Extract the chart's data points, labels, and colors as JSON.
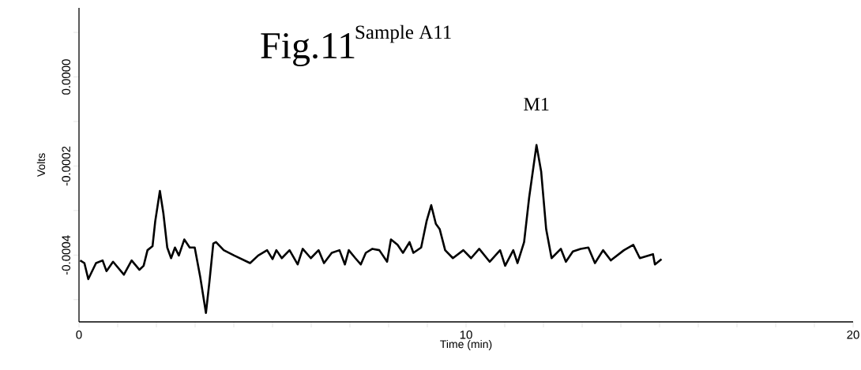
{
  "chart_data": {
    "type": "line",
    "title": "Fig.11",
    "subtitle": "Sample A11",
    "xlabel": "Time (min)",
    "ylabel": "Volts",
    "x": [
      0.03,
      0.14,
      0.24,
      0.44,
      0.61,
      0.71,
      0.88,
      1.16,
      1.36,
      1.56,
      1.67,
      1.77,
      1.9,
      1.97,
      2.09,
      2.18,
      2.28,
      2.38,
      2.48,
      2.58,
      2.72,
      2.86,
      2.99,
      3.13,
      3.28,
      3.37,
      3.47,
      3.54,
      3.74,
      4.01,
      4.42,
      4.63,
      4.86,
      5.0,
      5.1,
      5.24,
      5.44,
      5.65,
      5.78,
      5.99,
      6.19,
      6.33,
      6.53,
      6.73,
      6.87,
      6.97,
      7.14,
      7.28,
      7.41,
      7.58,
      7.76,
      7.96,
      8.06,
      8.23,
      8.37,
      8.54,
      8.64,
      8.84,
      8.98,
      9.1,
      9.22,
      9.32,
      9.46,
      9.66,
      9.93,
      10.13,
      10.34,
      10.61,
      10.88,
      11.01,
      11.22,
      11.33,
      11.5,
      11.63,
      11.82,
      11.94,
      12.07,
      12.21,
      12.45,
      12.58,
      12.76,
      12.96,
      13.16,
      13.33,
      13.54,
      13.74,
      14.08,
      14.32,
      14.49,
      14.83,
      14.88,
      15.05
    ],
    "values": [
      -0.000412,
      -0.000418,
      -0.000454,
      -0.000418,
      -0.000412,
      -0.000436,
      -0.000415,
      -0.000444,
      -0.000412,
      -0.000433,
      -0.000424,
      -0.000389,
      -0.00038,
      -0.000324,
      -0.000256,
      -0.000306,
      -0.000383,
      -0.000407,
      -0.000383,
      -0.000401,
      -0.000365,
      -0.000383,
      -0.000383,
      -0.000448,
      -0.00053,
      -0.00046,
      -0.000374,
      -0.000371,
      -0.000389,
      -0.000401,
      -0.000418,
      -0.000401,
      -0.000389,
      -0.000409,
      -0.000389,
      -0.000407,
      -0.000389,
      -0.000421,
      -0.000386,
      -0.000407,
      -0.000389,
      -0.000418,
      -0.000395,
      -0.000389,
      -0.000421,
      -0.000389,
      -0.000407,
      -0.000421,
      -0.000395,
      -0.000386,
      -0.000389,
      -0.000415,
      -0.000365,
      -0.000377,
      -0.000395,
      -0.000371,
      -0.000395,
      -0.000383,
      -0.000324,
      -0.000288,
      -0.00033,
      -0.000342,
      -0.000389,
      -0.000407,
      -0.000389,
      -0.000407,
      -0.000386,
      -0.000415,
      -0.000389,
      -0.000424,
      -0.000389,
      -0.000418,
      -0.000371,
      -0.000271,
      -0.000153,
      -0.000212,
      -0.000342,
      -0.000407,
      -0.000386,
      -0.000415,
      -0.000392,
      -0.000386,
      -0.000383,
      -0.000418,
      -0.000389,
      -0.000412,
      -0.000389,
      -0.000377,
      -0.000407,
      -0.000398,
      -0.000421,
      -0.000409
    ],
    "color": "#000000",
    "xlim": [
      0,
      20
    ],
    "xticks": [
      0,
      {
        "value": 1,
        "label": null
      },
      {
        "value": 2,
        "label": null
      },
      {
        "value": 3,
        "label": null
      },
      {
        "value": 4,
        "label": null
      },
      {
        "value": 5,
        "label": null
      },
      {
        "value": 6,
        "label": null
      },
      {
        "value": 7,
        "label": null
      },
      {
        "value": 8,
        "label": null
      },
      {
        "value": 9,
        "label": null
      },
      10,
      {
        "value": 11,
        "label": null
      },
      {
        "value": 12,
        "label": null
      },
      {
        "value": 13,
        "label": null
      },
      {
        "value": 14,
        "label": null
      },
      {
        "value": 15,
        "label": null
      },
      {
        "value": 16,
        "label": null
      },
      {
        "value": 17,
        "label": null
      },
      {
        "value": 18,
        "label": null
      },
      {
        "value": 19,
        "label": null
      },
      20
    ],
    "ylim": [
      -0.00055,
      0.000155
    ],
    "yticks": [
      {
        "value": -0.0005,
        "label": null
      },
      {
        "value": -0.0004,
        "label": "-0.0004"
      },
      {
        "value": -0.0003,
        "label": null
      },
      {
        "value": -0.0002,
        "label": "-0.0002"
      },
      {
        "value": -0.0001,
        "label": null
      },
      {
        "value": 0,
        "label": "0.0000"
      },
      {
        "value": 0.0001,
        "label": null
      }
    ],
    "annotations": [
      {
        "text": "M1",
        "x": 11.82,
        "y": -0.000153
      }
    ]
  }
}
